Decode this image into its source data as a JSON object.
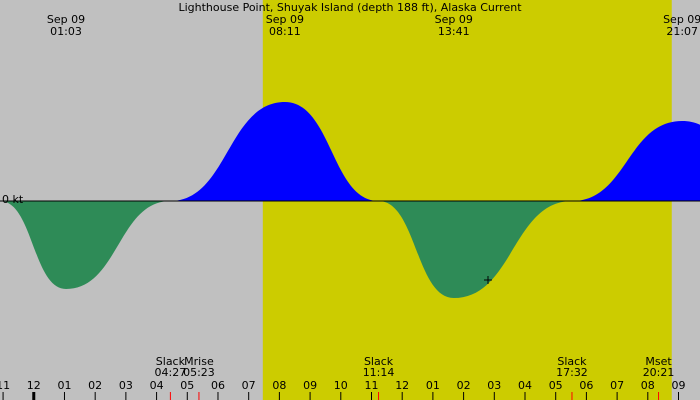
{
  "chart_data": {
    "type": "tide",
    "title": "Lighthouse Point, Shuyak Island (depth 188 ft), Alaska Current",
    "zero_label": "0 kt",
    "xlim": [
      -1.1,
      21.7
    ],
    "ylim": [
      -4,
      4
    ],
    "xticks": [
      {
        "value": -1,
        "label": "11"
      },
      {
        "value": 0,
        "label": "12"
      },
      {
        "value": 1,
        "label": "01"
      },
      {
        "value": 2,
        "label": "02"
      },
      {
        "value": 3,
        "label": "03"
      },
      {
        "value": 4,
        "label": "04"
      },
      {
        "value": 5,
        "label": "05"
      },
      {
        "value": 6,
        "label": "06"
      },
      {
        "value": 7,
        "label": "07"
      },
      {
        "value": 8,
        "label": "08"
      },
      {
        "value": 9,
        "label": "09"
      },
      {
        "value": 10,
        "label": "10"
      },
      {
        "value": 11,
        "label": "11"
      },
      {
        "value": 12,
        "label": "12"
      },
      {
        "value": 13,
        "label": "01"
      },
      {
        "value": 14,
        "label": "02"
      },
      {
        "value": 15,
        "label": "03"
      },
      {
        "value": 16,
        "label": "04"
      },
      {
        "value": 17,
        "label": "05"
      },
      {
        "value": 18,
        "label": "06"
      },
      {
        "value": 19,
        "label": "07"
      },
      {
        "value": 20,
        "label": "08"
      },
      {
        "value": 21,
        "label": "09"
      }
    ],
    "daylight": [
      7.46,
      20.78
    ],
    "curve": {
      "x": [
        -1.1,
        1.05,
        4.45,
        8.18,
        11.23,
        13.68,
        17.53,
        21.12,
        24.5
      ],
      "values": [
        0,
        -1.76,
        0,
        1.98,
        0,
        -1.94,
        0,
        1.6,
        0
      ]
    },
    "extremes": {
      "x": [
        1.05,
        8.18,
        13.68,
        21.12
      ],
      "dates": [
        "Sep 09",
        "Sep 09",
        "Sep 09",
        "Sep 09"
      ],
      "times": [
        "01:03",
        "08:11",
        "13:41",
        "21:07"
      ]
    },
    "events": {
      "x": [
        4.45,
        5.38,
        11.23,
        17.53,
        20.35
      ],
      "names": [
        "Slack",
        "Mrise",
        "Slack",
        "Slack",
        "Mset"
      ],
      "times": [
        "04:27",
        "05:23",
        "11:14",
        "17:32",
        "20:21"
      ]
    },
    "colors": {
      "background": "#c0c0c0",
      "daylight": "#cccc00",
      "flood": "#0000ff",
      "ebb": "#2e8b57"
    }
  }
}
